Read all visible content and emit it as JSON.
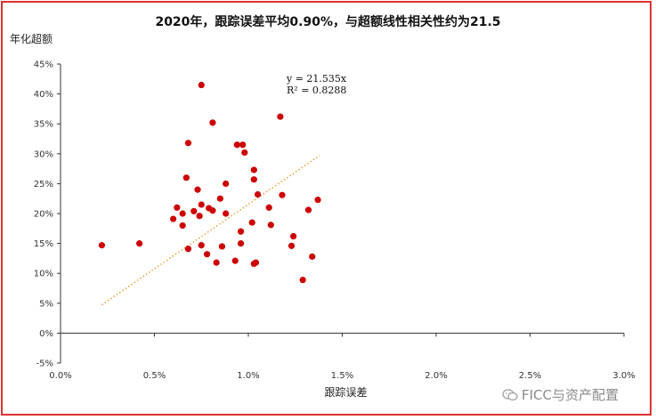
{
  "chart_data": {
    "type": "scatter",
    "title": "2020年，跟踪误差平均0.90%，与超额线性相关性约为21.5",
    "xlabel": "跟踪误差",
    "ylabel": "年化超额",
    "xlim": [
      0,
      0.03
    ],
    "ylim": [
      -0.05,
      0.45
    ],
    "x_ticks": [
      "0.0%",
      "0.5%",
      "1.0%",
      "1.5%",
      "2.0%",
      "2.5%",
      "3.0%"
    ],
    "y_ticks": [
      "45%",
      "40%",
      "35%",
      "30%",
      "25%",
      "20%",
      "15%",
      "10%",
      "5%",
      "0%",
      "-5%"
    ],
    "grid": false,
    "legend": "none",
    "trendline": {
      "slope": 21.535,
      "x_range": [
        0.0022,
        0.0138
      ],
      "equation": "y = 21.535x",
      "r_squared": "R² = 0.8288",
      "color": "#e0a030"
    },
    "marker_color": "#cc0000",
    "points": [
      [
        0.0022,
        0.147
      ],
      [
        0.0042,
        0.15
      ],
      [
        0.006,
        0.191
      ],
      [
        0.0062,
        0.21
      ],
      [
        0.0065,
        0.2
      ],
      [
        0.0065,
        0.18
      ],
      [
        0.0067,
        0.26
      ],
      [
        0.0068,
        0.318
      ],
      [
        0.0068,
        0.141
      ],
      [
        0.0071,
        0.204
      ],
      [
        0.0073,
        0.24
      ],
      [
        0.0074,
        0.196
      ],
      [
        0.0075,
        0.415
      ],
      [
        0.0075,
        0.215
      ],
      [
        0.0075,
        0.147
      ],
      [
        0.0078,
        0.132
      ],
      [
        0.0079,
        0.209
      ],
      [
        0.0081,
        0.205
      ],
      [
        0.0081,
        0.352
      ],
      [
        0.0083,
        0.118
      ],
      [
        0.0085,
        0.225
      ],
      [
        0.0086,
        0.145
      ],
      [
        0.0088,
        0.25
      ],
      [
        0.0088,
        0.2
      ],
      [
        0.0093,
        0.121
      ],
      [
        0.0094,
        0.315
      ],
      [
        0.0096,
        0.15
      ],
      [
        0.0096,
        0.17
      ],
      [
        0.0097,
        0.315
      ],
      [
        0.0098,
        0.302
      ],
      [
        0.0102,
        0.185
      ],
      [
        0.0103,
        0.273
      ],
      [
        0.0103,
        0.257
      ],
      [
        0.0103,
        0.116
      ],
      [
        0.0104,
        0.118
      ],
      [
        0.0105,
        0.232
      ],
      [
        0.0111,
        0.21
      ],
      [
        0.0112,
        0.181
      ],
      [
        0.0117,
        0.362
      ],
      [
        0.0118,
        0.231
      ],
      [
        0.0123,
        0.146
      ],
      [
        0.0124,
        0.162
      ],
      [
        0.0129,
        0.089
      ],
      [
        0.0132,
        0.206
      ],
      [
        0.0134,
        0.128
      ],
      [
        0.0137,
        0.223
      ]
    ]
  },
  "watermark": {
    "text": "FICC与资产配置",
    "icon": "wechat-icon"
  },
  "frame_color": "#e03030"
}
